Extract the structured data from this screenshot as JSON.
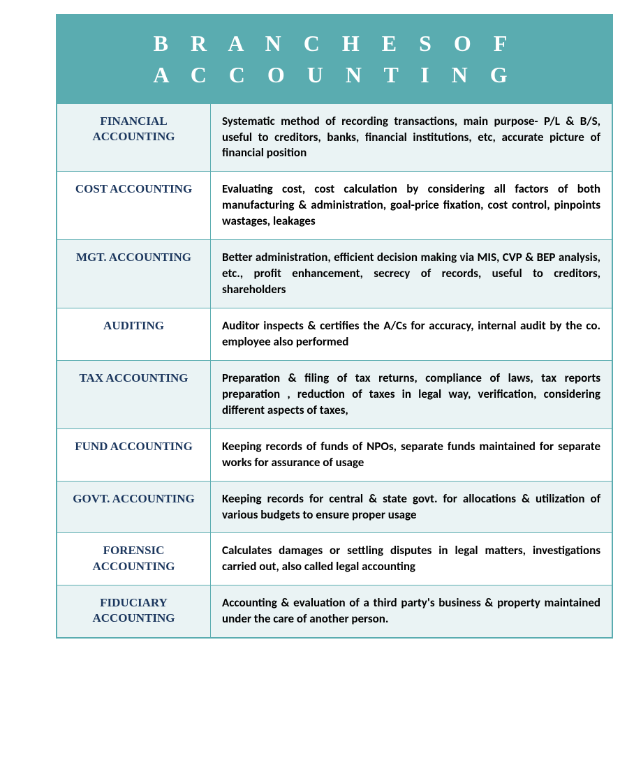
{
  "title": "B R A N C H E S   O F\nA C C O U N T I N G",
  "colors": {
    "header_bg": "#5aacb0",
    "header_text": "#ffffff",
    "border": "#5aacb0",
    "row_alt_bg": "#eaf3f4",
    "row_bg": "#ffffff",
    "label_text": "#1b365d",
    "desc_text": "#000000"
  },
  "rows": [
    {
      "label": "FINANCIAL ACCOUNTING",
      "description": "Systematic method of recording transactions, main purpose- P/L & B/S, useful to creditors, banks, financial institutions, etc, accurate picture of financial position"
    },
    {
      "label": "COST ACCOUNTING",
      "description": "Evaluating cost, cost calculation by considering all factors of both manufacturing & administration, goal-price fixation, cost control, pinpoints wastages, leakages"
    },
    {
      "label": "MGT. ACCOUNTING",
      "description": "Better administration, efficient decision making via MIS, CVP & BEP analysis, etc., profit enhancement, secrecy of records, useful to creditors, shareholders"
    },
    {
      "label": "AUDITING",
      "description": "Auditor inspects & certifies the A/Cs for accuracy, internal audit by the co. employee also performed"
    },
    {
      "label": "TAX ACCOUNTING",
      "description": "Preparation & filing of tax returns, compliance of laws, tax reports preparation , reduction of taxes in legal way, verification, considering different aspects of taxes,"
    },
    {
      "label": "FUND ACCOUNTING",
      "description": "Keeping records of funds of NPOs, separate funds maintained for separate works for assurance of usage"
    },
    {
      "label": "GOVT. ACCOUNTING",
      "description": "Keeping records for central & state govt. for allocations & utilization of various budgets to ensure proper usage"
    },
    {
      "label": "FORENSIC ACCOUNTING",
      "description": "Calculates damages or settling disputes in legal matters, investigations carried out, also called legal accounting"
    },
    {
      "label": "FIDUCIARY ACCOUNTING",
      "description": "Accounting & evaluation of a third party's business & property maintained under the care of another person."
    }
  ]
}
